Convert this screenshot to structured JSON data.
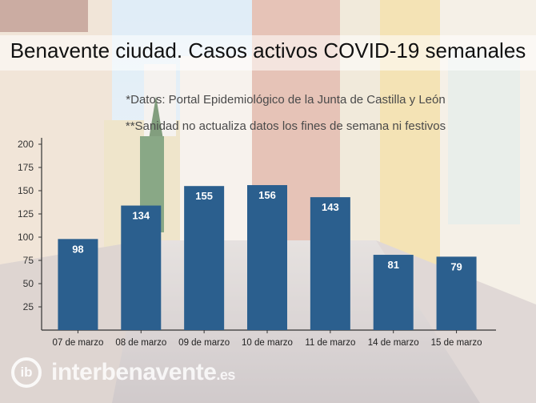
{
  "chart_data": {
    "type": "bar",
    "title": "Benavente ciudad. Casos activos COVID-19 semanales",
    "notes": [
      "*Datos: Portal Epidemiológico de la Junta de Castilla y León",
      "**Sanidad no actualiza datos los fines de semana ni festivos"
    ],
    "categories": [
      "07 de marzo",
      "08 de marzo",
      "09 de marzo",
      "10 de marzo",
      "11 de marzo",
      "14 de marzo",
      "15 de marzo"
    ],
    "values": [
      98,
      134,
      155,
      156,
      143,
      81,
      79
    ],
    "ylim": [
      0,
      200
    ],
    "yticks": [
      25,
      50,
      75,
      100,
      125,
      150,
      175,
      200
    ],
    "grid": false,
    "data_labels": true,
    "bar_color": "#2b5f8e",
    "label_color": "#ffffff"
  },
  "watermark": {
    "name": "interbenavente",
    "suffix": ".es",
    "logo": "ib"
  }
}
